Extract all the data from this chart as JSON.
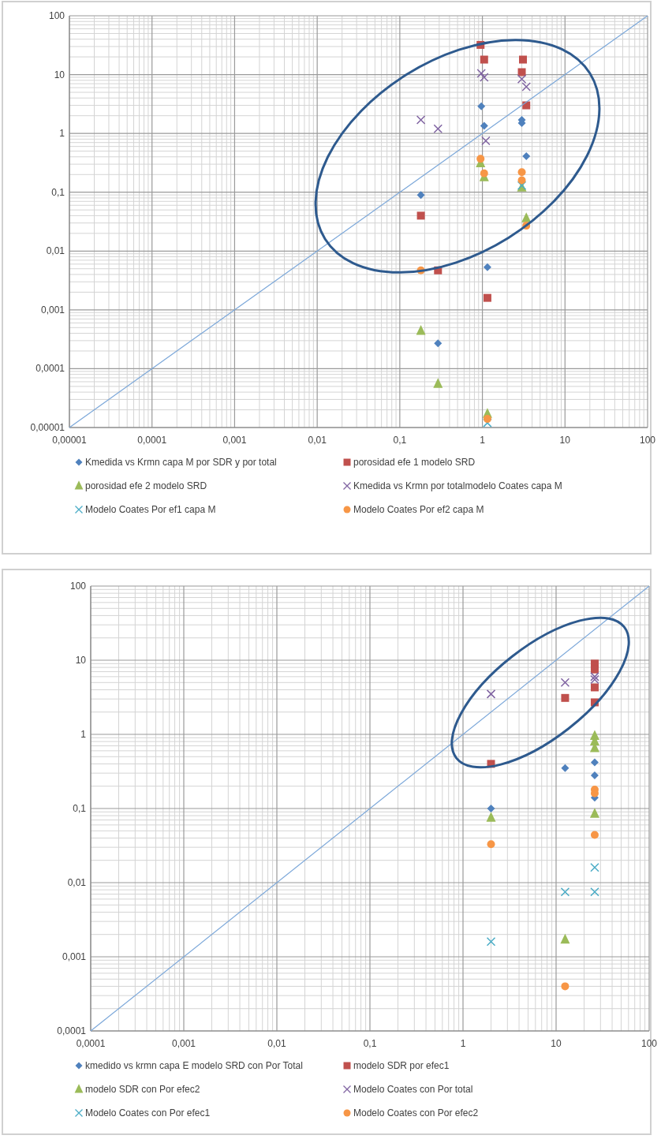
{
  "chart_data": [
    {
      "type": "scatter",
      "log": "xy",
      "grid": true,
      "legend": "bottom",
      "xlim": [
        1e-05,
        100
      ],
      "ylim": [
        1e-05,
        100
      ],
      "xticks": [
        {
          "value": 1e-05,
          "label": "0,00001"
        },
        {
          "value": 0.0001,
          "label": "0,0001"
        },
        {
          "value": 0.001,
          "label": "0,001"
        },
        {
          "value": 0.01,
          "label": "0,01"
        },
        {
          "value": 0.1,
          "label": "0,1"
        },
        1,
        10,
        100
      ],
      "yticks": [
        {
          "value": 1e-05,
          "label": "0,00001"
        },
        {
          "value": 0.0001,
          "label": "0,0001"
        },
        {
          "value": 0.001,
          "label": "0,001"
        },
        {
          "value": 0.01,
          "label": "0,01"
        },
        {
          "value": 0.1,
          "label": "0,1"
        },
        1,
        10,
        100
      ],
      "series": [
        {
          "name": "Kmedida vs Krmn capa M por SDR y por total",
          "color": "#4f81bd",
          "marker": "diamond",
          "x": [
            0.18,
            0.97,
            1.05,
            3.0,
            3.0,
            3.4,
            1.15,
            0.29
          ],
          "values": [
            0.09,
            2.9,
            1.35,
            1.5,
            1.7,
            0.41,
            0.0053,
            0.00027
          ]
        },
        {
          "name": "porosidad efe 1 modelo SRD",
          "color": "#c0504d",
          "marker": "square",
          "x": [
            0.95,
            1.05,
            3.1,
            3.0,
            3.4,
            0.18,
            0.29,
            1.15
          ],
          "values": [
            32,
            18,
            18,
            11,
            3.0,
            0.04,
            0.0047,
            0.0016
          ]
        },
        {
          "name": "porosidad efe 2 modelo SRD",
          "color": "#9bbb59",
          "marker": "triangle",
          "x": [
            0.95,
            1.05,
            3.0,
            3.4,
            0.18,
            0.29,
            1.15
          ],
          "values": [
            0.31,
            0.18,
            0.12,
            0.036,
            0.00044,
            5.5e-05,
            1.7e-05
          ]
        },
        {
          "name": "Kmedida vs Krmn por totalmodelo Coates capa M",
          "color": "#8064a2",
          "marker": "cross",
          "x": [
            0.18,
            0.29,
            0.97,
            1.05,
            3.0,
            3.4,
            1.1
          ],
          "values": [
            1.7,
            1.2,
            10.5,
            9,
            8.4,
            6.2,
            0.75
          ]
        },
        {
          "name": "Modelo Coates Por ef1 capa M",
          "color": "#4bacc6",
          "marker": "cross",
          "x": [
            1.15,
            3.0
          ],
          "values": [
            1.2e-05,
            0.13
          ]
        },
        {
          "name": "Modelo Coates Por ef2 capa M",
          "color": "#f79646",
          "marker": "circle",
          "x": [
            0.95,
            1.05,
            3.0,
            3.0,
            3.4,
            0.18,
            1.15
          ],
          "values": [
            0.37,
            0.21,
            0.22,
            0.16,
            0.027,
            0.0047,
            1.4e-05
          ]
        },
        {
          "type": "line",
          "color": "#7ba7d9",
          "marker": "none",
          "x": [
            1e-05,
            100
          ],
          "values": [
            1e-05,
            100
          ]
        }
      ]
    },
    {
      "type": "scatter",
      "log": "xy",
      "grid": true,
      "legend": "bottom",
      "xlim": [
        0.0001,
        100
      ],
      "ylim": [
        0.0001,
        100
      ],
      "xticks": [
        {
          "value": 0.0001,
          "label": "0,0001"
        },
        {
          "value": 0.001,
          "label": "0,001"
        },
        {
          "value": 0.01,
          "label": "0,01"
        },
        {
          "value": 0.1,
          "label": "0,1"
        },
        1,
        10,
        100
      ],
      "yticks": [
        {
          "value": 0.0001,
          "label": "0,0001"
        },
        {
          "value": 0.001,
          "label": "0,001"
        },
        {
          "value": 0.01,
          "label": "0,01"
        },
        {
          "value": 0.1,
          "label": "0,1"
        },
        1,
        10,
        100
      ],
      "series": [
        {
          "name": "kmedido vs krmn capa E modelo SRD con Por Total",
          "color": "#4f81bd",
          "marker": "diamond",
          "x": [
            2,
            12.5,
            26,
            26,
            26
          ],
          "values": [
            0.1,
            0.35,
            0.42,
            0.28,
            0.14
          ]
        },
        {
          "name": "modelo SDR por efec1",
          "color": "#c0504d",
          "marker": "square",
          "x": [
            2,
            12.5,
            26,
            26,
            26,
            26
          ],
          "values": [
            0.4,
            3.1,
            9,
            7.5,
            4.3,
            2.7
          ]
        },
        {
          "name": "modelo SDR con Por efec2",
          "color": "#9bbb59",
          "marker": "triangle",
          "x": [
            2,
            12.5,
            26,
            26,
            26,
            26
          ],
          "values": [
            0.075,
            0.0017,
            0.95,
            0.8,
            0.65,
            0.085
          ]
        },
        {
          "name": "Modelo Coates con Por total",
          "color": "#8064a2",
          "marker": "cross",
          "x": [
            2,
            12.5,
            26,
            26
          ],
          "values": [
            3.5,
            5,
            5.5,
            6
          ]
        },
        {
          "name": "Modelo Coates con Por efec1",
          "color": "#4bacc6",
          "marker": "cross",
          "x": [
            2,
            12.5,
            26,
            26
          ],
          "values": [
            0.0016,
            0.0075,
            0.0075,
            0.016
          ]
        },
        {
          "name": "Modelo Coates con Por efec2",
          "color": "#f79646",
          "marker": "circle",
          "x": [
            2,
            12.5,
            26,
            26,
            26
          ],
          "values": [
            0.033,
            0.0004,
            0.18,
            0.16,
            0.044
          ]
        },
        {
          "type": "line",
          "color": "#7ba7d9",
          "marker": "none",
          "x": [
            0.0001,
            100
          ],
          "values": [
            0.0001,
            100
          ]
        }
      ]
    }
  ]
}
